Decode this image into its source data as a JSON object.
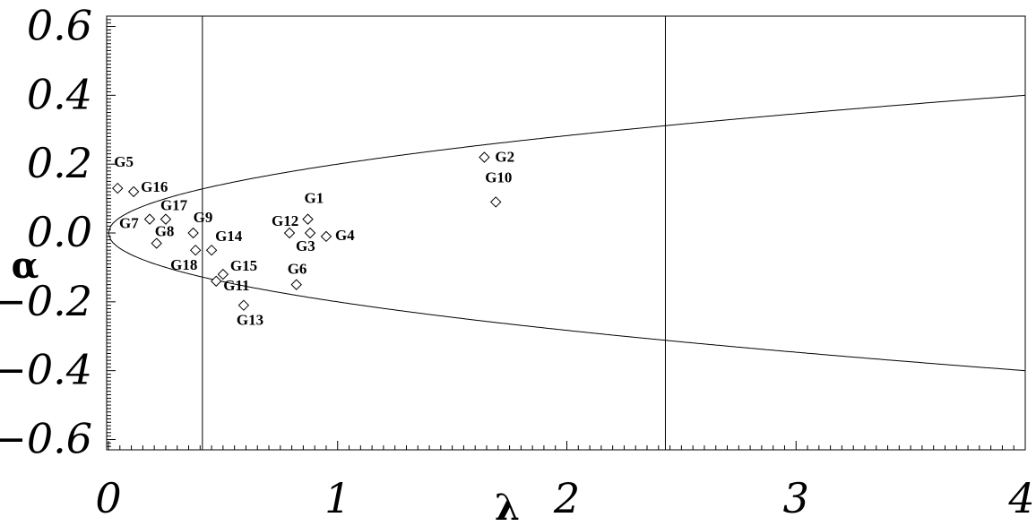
{
  "chart_data": {
    "type": "scatter",
    "title": "",
    "xlabel": "λ",
    "ylabel": "α",
    "xlim": [
      0,
      4
    ],
    "ylim": [
      -0.63,
      0.63
    ],
    "x_ticks": [
      "0",
      "1",
      "2",
      "3",
      "4"
    ],
    "y_ticks": [
      "0.6",
      "0.4",
      "0.2",
      "0.0",
      "−0.2",
      "−0.4",
      "−0.6"
    ],
    "y_tick_values": [
      0.6,
      0.4,
      0.2,
      0.0,
      -0.2,
      -0.4,
      -0.6
    ],
    "vertical_lines": [
      0.41,
      2.43
    ],
    "boundary_curve": {
      "function": "alpha = ±0.2·sqrt(lambda)"
    },
    "grid": false,
    "legend": "none",
    "points": [
      {
        "label": "G1",
        "x": 0.87,
        "y": 0.04
      },
      {
        "label": "G2",
        "x": 1.64,
        "y": 0.22
      },
      {
        "label": "G3",
        "x": 0.88,
        "y": 0.0
      },
      {
        "label": "G4",
        "x": 0.95,
        "y": -0.01
      },
      {
        "label": "G5",
        "x": 0.04,
        "y": 0.13
      },
      {
        "label": "G6",
        "x": 0.82,
        "y": -0.15
      },
      {
        "label": "G7",
        "x": 0.18,
        "y": 0.04
      },
      {
        "label": "G8",
        "x": 0.21,
        "y": -0.03
      },
      {
        "label": "G9",
        "x": 0.37,
        "y": 0.0
      },
      {
        "label": "G10",
        "x": 1.69,
        "y": 0.09
      },
      {
        "label": "G11",
        "x": 0.47,
        "y": -0.14
      },
      {
        "label": "G12",
        "x": 0.79,
        "y": 0.0
      },
      {
        "label": "G13",
        "x": 0.59,
        "y": -0.21
      },
      {
        "label": "G14",
        "x": 0.45,
        "y": -0.05
      },
      {
        "label": "G15",
        "x": 0.5,
        "y": -0.12
      },
      {
        "label": "G16",
        "x": 0.11,
        "y": 0.12
      },
      {
        "label": "G17",
        "x": 0.25,
        "y": 0.04
      },
      {
        "label": "G18",
        "x": 0.38,
        "y": -0.05
      }
    ]
  }
}
